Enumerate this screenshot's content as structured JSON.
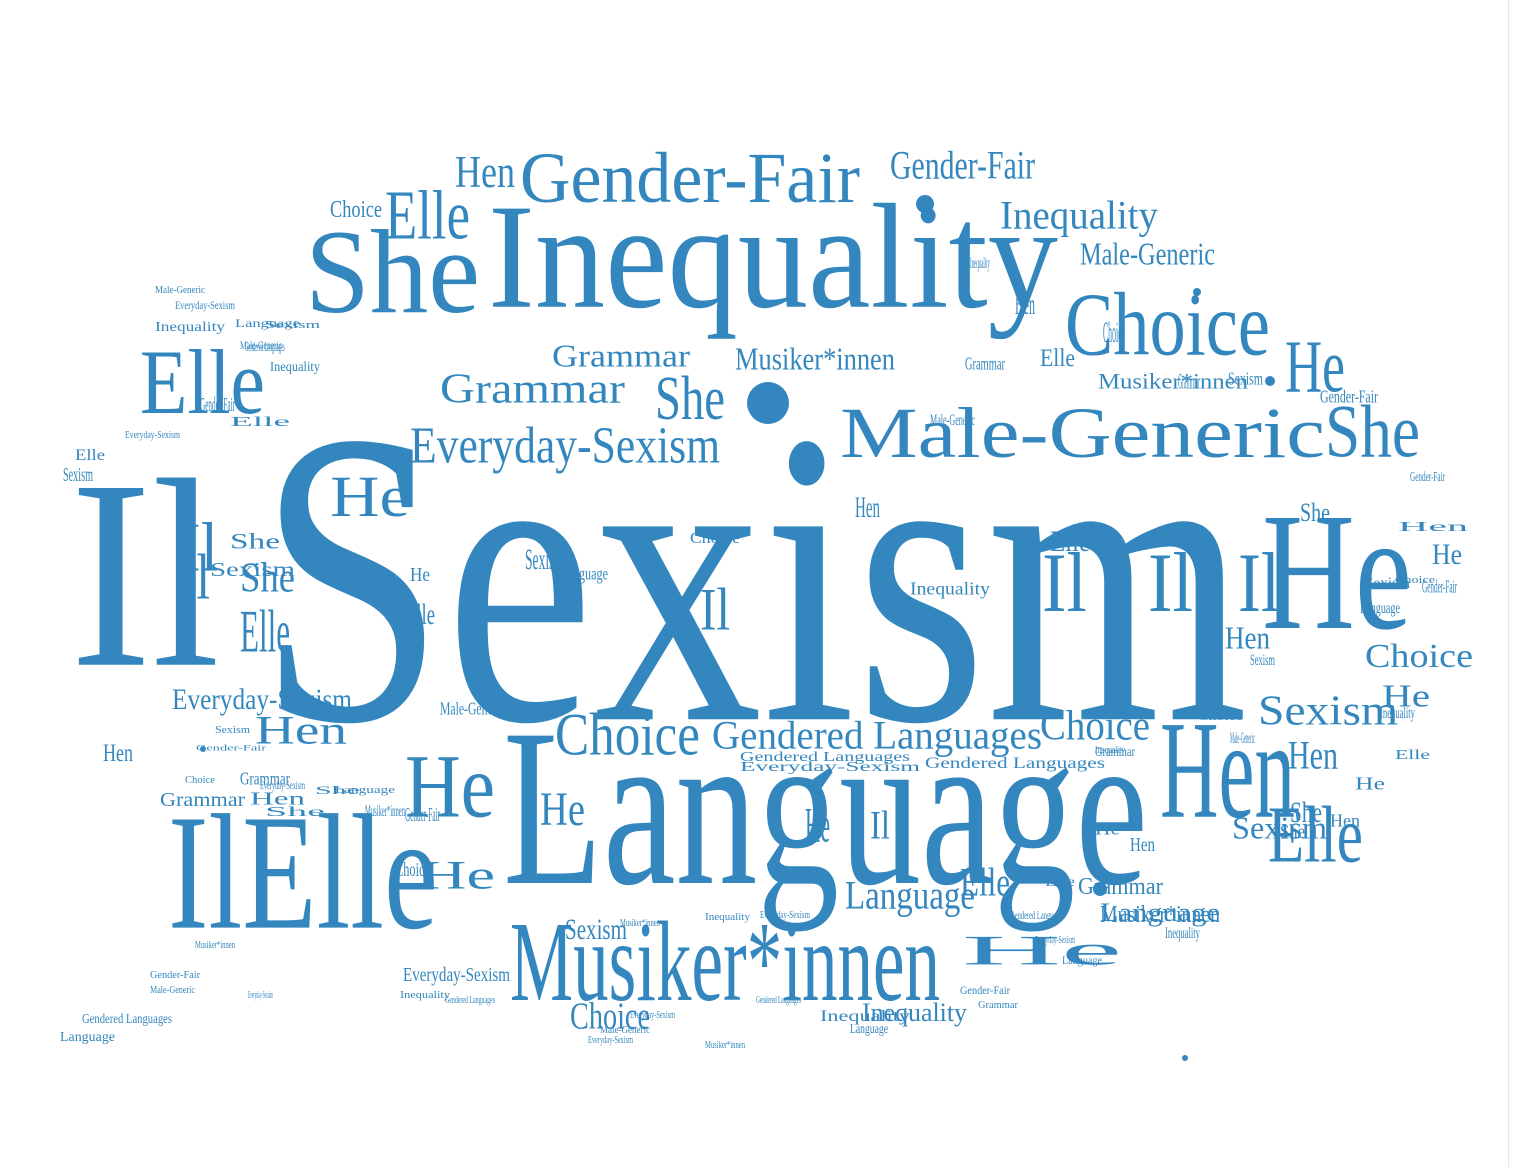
{
  "style": {
    "word_color": "#3487be",
    "background": "#ffffff"
  },
  "cloud": {
    "words": [
      {
        "t": "Sexism"
      },
      {
        "t": "Language"
      },
      {
        "t": "Inequality"
      },
      {
        "t": "Il"
      },
      {
        "t": "Male-Generic"
      },
      {
        "t": "Gender-Fair"
      },
      {
        "t": "She"
      },
      {
        "t": "He"
      },
      {
        "t": "Hen"
      },
      {
        "t": "IlElle"
      },
      {
        "t": "Elle"
      },
      {
        "t": "Choice"
      },
      {
        "t": "Musiker*innen"
      },
      {
        "t": "Gendered Languages"
      },
      {
        "t": "Everyday-Sexism"
      },
      {
        "t": "Grammar"
      },
      {
        "t": "Gender-Fair"
      },
      {
        "t": "Inequality"
      },
      {
        "t": "Elle"
      },
      {
        "t": "She"
      },
      {
        "t": "Elle"
      },
      {
        "t": "Il"
      },
      {
        "t": "Il"
      },
      {
        "t": "Il"
      },
      {
        "t": "He"
      },
      {
        "t": "He"
      },
      {
        "t": "She"
      },
      {
        "t": "Hen"
      },
      {
        "t": "He"
      },
      {
        "t": "Choice"
      },
      {
        "t": "Grammar"
      },
      {
        "t": "Sexism"
      },
      {
        "t": "Grammar"
      },
      {
        "t": "Everyday-Sexism"
      },
      {
        "t": "Musiker*innen"
      },
      {
        "t": "Choice"
      },
      {
        "t": "Choice"
      },
      {
        "t": "Gendered Languages"
      },
      {
        "t": "Choice"
      },
      {
        "t": "Hen"
      },
      {
        "t": "Sexism"
      },
      {
        "t": "He"
      },
      {
        "t": "She"
      },
      {
        "t": "Hen"
      },
      {
        "t": "Choice"
      },
      {
        "t": "Language"
      },
      {
        "t": "Language"
      },
      {
        "t": "Gendered Languages"
      },
      {
        "t": "Musiker*innen"
      },
      {
        "t": "Male-Generic"
      },
      {
        "t": "Inequality"
      },
      {
        "t": "Sexism"
      },
      {
        "t": "Hen"
      },
      {
        "t": "Hen"
      },
      {
        "t": "He"
      },
      {
        "t": "She"
      },
      {
        "t": "Elle"
      },
      {
        "t": "Everyday-Sexism"
      },
      {
        "t": "Inequality"
      },
      {
        "t": "Hen"
      },
      {
        "t": "Sexism"
      },
      {
        "t": "Grammar"
      },
      {
        "t": "Inequality"
      },
      {
        "t": "He"
      },
      {
        "t": "Elle"
      },
      {
        "t": "Gender-Fair"
      },
      {
        "t": "Hen"
      },
      {
        "t": "He"
      },
      {
        "t": "Sexism"
      },
      {
        "t": "Grammar"
      },
      {
        "t": "Musiker*innen"
      },
      {
        "t": "Choice"
      },
      {
        "t": "Elle"
      },
      {
        "t": "He"
      },
      {
        "t": "Hen"
      },
      {
        "t": "She"
      },
      {
        "t": "Gender-Fair"
      },
      {
        "t": "Male-Generic"
      },
      {
        "t": "Inequality"
      },
      {
        "t": "Language"
      },
      {
        "t": "Sexism"
      },
      {
        "t": "Elle"
      },
      {
        "t": "She"
      },
      {
        "t": "Il"
      },
      {
        "t": "Il"
      },
      {
        "t": "Il"
      },
      {
        "t": "He"
      },
      {
        "t": "Il"
      },
      {
        "t": "Elle"
      },
      {
        "t": "He"
      },
      {
        "t": "Sexism"
      },
      {
        "t": "Language"
      },
      {
        "t": "Choice"
      },
      {
        "t": "Gendered Languages"
      },
      {
        "t": "Everyday-Sexism"
      },
      {
        "t": "Inequality"
      },
      {
        "t": "Male-Generic"
      },
      {
        "t": "Grammar"
      },
      {
        "t": "Gender-Fair"
      },
      {
        "t": "Hen"
      },
      {
        "t": "Choice"
      },
      {
        "t": "Sexism"
      },
      {
        "t": "Language"
      },
      {
        "t": "Inequality"
      },
      {
        "t": "Elle"
      },
      {
        "t": "He"
      },
      {
        "t": "Hen"
      },
      {
        "t": "She"
      },
      {
        "t": "Sexism"
      },
      {
        "t": "Hen"
      },
      {
        "t": "He"
      },
      {
        "t": "Elle"
      },
      {
        "t": "Gendered Languages"
      },
      {
        "t": "Everyday-Sexism"
      },
      {
        "t": "Language"
      },
      {
        "t": "Grammar"
      },
      {
        "t": "Male-Generic"
      },
      {
        "t": "Choice"
      },
      {
        "t": "Inequality"
      },
      {
        "t": "Musiker*innen"
      },
      {
        "t": "Gender-Fair"
      },
      {
        "t": "Grammar"
      },
      {
        "t": "Gendered Languages"
      },
      {
        "t": "Everyday-Sexism"
      },
      {
        "t": "Inequality"
      },
      {
        "t": "Musiker*innen"
      },
      {
        "t": "Male-Generic"
      },
      {
        "t": "Musiker*innen"
      },
      {
        "t": "Everyday-Sexism"
      },
      {
        "t": "Everyday-Sexism"
      },
      {
        "t": "Gendered Languages"
      },
      {
        "t": "Inequality"
      },
      {
        "t": "Gender-Fair"
      },
      {
        "t": "Male-Generic"
      },
      {
        "t": "Language"
      },
      {
        "t": "Gendered Languages"
      },
      {
        "t": "Everyday-Sexism"
      },
      {
        "t": "Musiker*innen"
      },
      {
        "t": "Gender-Fair"
      },
      {
        "t": "Sexism"
      },
      {
        "t": "Choice"
      },
      {
        "t": "Grammar"
      },
      {
        "t": "Hen"
      },
      {
        "t": "She"
      },
      {
        "t": "Language"
      },
      {
        "t": "Musiker*innen"
      },
      {
        "t": "Gender-Fair"
      },
      {
        "t": "Choice"
      },
      {
        "t": "Elle"
      },
      {
        "t": "She"
      },
      {
        "t": "Everyday-Sexism"
      },
      {
        "t": "Gendered Languages"
      },
      {
        "t": "Language"
      },
      {
        "t": "Male-Generic"
      },
      {
        "t": "Everyday-Sexism"
      },
      {
        "t": "Inequality"
      },
      {
        "t": "Sexism"
      },
      {
        "t": "Male-Generic"
      },
      {
        "t": "Inequality"
      },
      {
        "t": "Elle"
      },
      {
        "t": "Gender-Fair"
      },
      {
        "t": "Everyday-Sexism"
      },
      {
        "t": "Elle"
      }
    ]
  }
}
